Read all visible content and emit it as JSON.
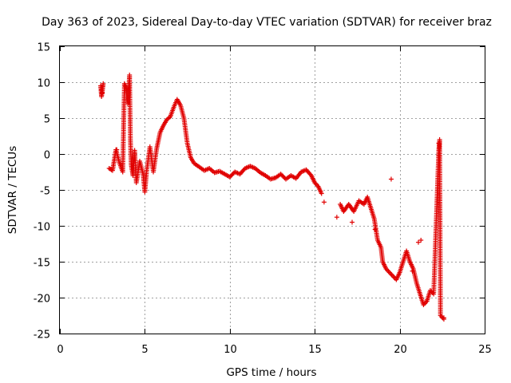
{
  "chart_data": {
    "type": "scatter",
    "title": "Day 363 of 2023, Sidereal Day-to-day VTEC variation (SDTVAR) for receiver braz",
    "xlabel": "GPS time / hours",
    "ylabel": "SDTVAR / TECUs",
    "xlim": [
      0,
      25
    ],
    "ylim": [
      -25,
      15
    ],
    "xticks": [
      0,
      5,
      10,
      15,
      20,
      25
    ],
    "yticks": [
      -25,
      -20,
      -15,
      -10,
      -5,
      0,
      5,
      10,
      15
    ],
    "grid": true,
    "marker": "+",
    "color": "#e00000",
    "series": [
      {
        "name": "SDTVAR",
        "trace_points": [
          [
            2.4,
            9.5
          ],
          [
            2.45,
            8.0
          ],
          [
            2.5,
            8.8
          ],
          [
            2.55,
            9.8
          ],
          [
            2.9,
            -2.0
          ],
          [
            3.1,
            -2.3
          ],
          [
            3.3,
            0.6
          ],
          [
            3.5,
            -1.2
          ],
          [
            3.7,
            -2.5
          ],
          [
            3.8,
            9.8
          ],
          [
            3.9,
            9.2
          ],
          [
            4.0,
            7.0
          ],
          [
            4.1,
            11.0
          ],
          [
            4.15,
            2.0
          ],
          [
            4.2,
            -1.5
          ],
          [
            4.3,
            -3.0
          ],
          [
            4.4,
            0.5
          ],
          [
            4.5,
            -4.0
          ],
          [
            4.7,
            -1.0
          ],
          [
            4.9,
            -2.8
          ],
          [
            5.0,
            -5.3
          ],
          [
            5.1,
            -2.5
          ],
          [
            5.3,
            1.0
          ],
          [
            5.5,
            -2.5
          ],
          [
            5.7,
            0.8
          ],
          [
            5.9,
            3.0
          ],
          [
            6.1,
            4.0
          ],
          [
            6.3,
            4.8
          ],
          [
            6.5,
            5.2
          ],
          [
            6.7,
            6.5
          ],
          [
            6.9,
            7.6
          ],
          [
            7.1,
            6.8
          ],
          [
            7.3,
            5.0
          ],
          [
            7.5,
            1.5
          ],
          [
            7.7,
            -0.5
          ],
          [
            7.9,
            -1.3
          ],
          [
            8.2,
            -1.8
          ],
          [
            8.5,
            -2.3
          ],
          [
            8.8,
            -2.0
          ],
          [
            9.1,
            -2.6
          ],
          [
            9.4,
            -2.4
          ],
          [
            9.7,
            -2.8
          ],
          [
            10.0,
            -3.2
          ],
          [
            10.3,
            -2.5
          ],
          [
            10.6,
            -2.8
          ],
          [
            10.9,
            -2.0
          ],
          [
            11.2,
            -1.7
          ],
          [
            11.5,
            -2.0
          ],
          [
            11.8,
            -2.6
          ],
          [
            12.1,
            -3.0
          ],
          [
            12.4,
            -3.5
          ],
          [
            12.7,
            -3.3
          ],
          [
            13.0,
            -2.8
          ],
          [
            13.3,
            -3.5
          ],
          [
            13.6,
            -3.0
          ],
          [
            13.9,
            -3.4
          ],
          [
            14.2,
            -2.5
          ],
          [
            14.5,
            -2.2
          ],
          [
            14.8,
            -3.0
          ],
          [
            15.0,
            -4.0
          ],
          [
            15.2,
            -4.5
          ],
          [
            15.4,
            -5.5
          ],
          [
            16.5,
            -7.0
          ],
          [
            16.7,
            -8.0
          ],
          [
            17.0,
            -7.0
          ],
          [
            17.3,
            -8.0
          ],
          [
            17.6,
            -6.5
          ],
          [
            17.9,
            -7.0
          ],
          [
            18.1,
            -6.0
          ],
          [
            18.3,
            -7.5
          ],
          [
            18.5,
            -9.0
          ],
          [
            18.7,
            -12.0
          ],
          [
            18.9,
            -13.0
          ],
          [
            19.0,
            -15.0
          ],
          [
            19.2,
            -16.0
          ],
          [
            19.4,
            -16.5
          ],
          [
            19.6,
            -17.0
          ],
          [
            19.8,
            -17.5
          ],
          [
            20.0,
            -16.5
          ],
          [
            20.2,
            -15.0
          ],
          [
            20.4,
            -13.5
          ],
          [
            20.6,
            -15.0
          ],
          [
            20.8,
            -16.0
          ],
          [
            21.0,
            -18.0
          ],
          [
            21.2,
            -19.5
          ],
          [
            21.4,
            -21.0
          ],
          [
            21.6,
            -20.5
          ],
          [
            21.8,
            -19.0
          ],
          [
            22.0,
            -19.5
          ],
          [
            22.3,
            0.5
          ],
          [
            22.35,
            2.0
          ],
          [
            22.4,
            -22.5
          ],
          [
            22.6,
            -23.0
          ]
        ],
        "isolated_points": [
          [
            2.45,
            9.0
          ],
          [
            2.5,
            8.5
          ],
          [
            3.35,
            0.6
          ],
          [
            15.55,
            -6.7
          ],
          [
            16.3,
            -8.8
          ],
          [
            17.2,
            -9.5
          ],
          [
            18.55,
            -10.5
          ],
          [
            19.5,
            -3.5
          ],
          [
            20.75,
            -16.3
          ],
          [
            21.1,
            -12.3
          ],
          [
            21.25,
            -12.0
          ],
          [
            22.3,
            1.5
          ],
          [
            22.3,
            -0.2
          ],
          [
            22.6,
            -22.8
          ]
        ]
      }
    ]
  }
}
